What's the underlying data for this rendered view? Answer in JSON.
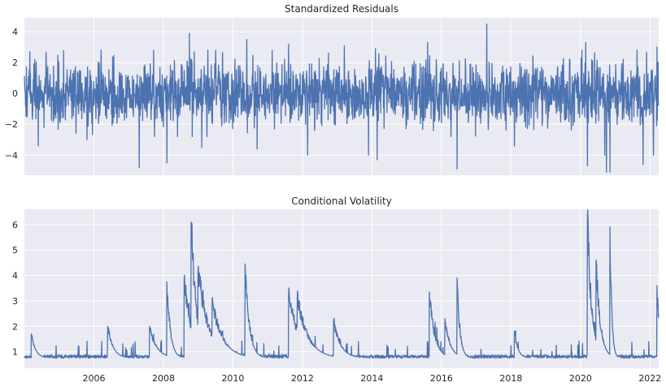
{
  "colors": {
    "background": "#eaeaf2",
    "grid": "#ffffff",
    "line": "#4c72b0",
    "text": "#262626"
  },
  "chart_data": [
    {
      "type": "line",
      "title": "Standardized Residuals",
      "xlabel": "",
      "ylabel": "",
      "xlim": [
        2004.0,
        2022.25
      ],
      "ylim": [
        -5.3,
        4.9
      ],
      "yticks": [
        -4,
        -2,
        0,
        2,
        4
      ],
      "ytick_labels": [
        "−4",
        "−2",
        "0",
        "2",
        "4"
      ],
      "grid": true,
      "series": [
        {
          "name": "std_resid",
          "frequency": "daily",
          "base_amplitude": 1.0,
          "spikes": [
            {
              "x": 2004.4,
              "y": -3.4
            },
            {
              "x": 2005.8,
              "y": -3.0
            },
            {
              "x": 2007.3,
              "y": -4.8
            },
            {
              "x": 2008.1,
              "y": -4.5
            },
            {
              "x": 2008.75,
              "y": 3.9
            },
            {
              "x": 2009.1,
              "y": -3.5
            },
            {
              "x": 2010.4,
              "y": 3.5
            },
            {
              "x": 2010.7,
              "y": -3.6
            },
            {
              "x": 2011.6,
              "y": 3.2
            },
            {
              "x": 2012.15,
              "y": -4.0
            },
            {
              "x": 2013.2,
              "y": 3.1
            },
            {
              "x": 2013.9,
              "y": -4.0
            },
            {
              "x": 2014.1,
              "y": 2.9
            },
            {
              "x": 2014.15,
              "y": -4.3
            },
            {
              "x": 2015.6,
              "y": 3.3
            },
            {
              "x": 2016.45,
              "y": -4.9
            },
            {
              "x": 2017.3,
              "y": 4.5
            },
            {
              "x": 2018.1,
              "y": -3.4
            },
            {
              "x": 2020.15,
              "y": 3.3
            },
            {
              "x": 2020.2,
              "y": -4.7
            },
            {
              "x": 2020.7,
              "y": -4.0
            },
            {
              "x": 2020.75,
              "y": -5.1
            },
            {
              "x": 2020.85,
              "y": -5.1
            },
            {
              "x": 2021.8,
              "y": -4.6
            },
            {
              "x": 2022.1,
              "y": -4.0
            },
            {
              "x": 2022.2,
              "y": 3.0
            }
          ]
        }
      ]
    },
    {
      "type": "line",
      "title": "Conditional Volatility",
      "xlabel": "",
      "ylabel": "",
      "xlim": [
        2004.0,
        2022.25
      ],
      "ylim": [
        0.35,
        6.6
      ],
      "yticks": [
        1,
        2,
        3,
        4,
        5,
        6
      ],
      "ytick_labels": [
        "1",
        "2",
        "3",
        "4",
        "5",
        "6"
      ],
      "xticks": [
        2006,
        2008,
        2010,
        2012,
        2014,
        2016,
        2018,
        2020,
        2022
      ],
      "xtick_labels": [
        "2006",
        "2008",
        "2010",
        "2012",
        "2014",
        "2016",
        "2018",
        "2020",
        "2022"
      ],
      "grid": true,
      "series": [
        {
          "name": "conditional_volatility",
          "frequency": "daily",
          "baseline": 0.75,
          "peaks": [
            {
              "x": 2004.2,
              "y": 1.7,
              "decay": 0.12
            },
            {
              "x": 2006.4,
              "y": 2.0,
              "decay": 0.15
            },
            {
              "x": 2007.6,
              "y": 2.0,
              "decay": 0.2
            },
            {
              "x": 2008.1,
              "y": 3.75,
              "decay": 0.1
            },
            {
              "x": 2008.6,
              "y": 3.9,
              "decay": 0.2
            },
            {
              "x": 2008.8,
              "y": 6.1,
              "decay": 0.15
            },
            {
              "x": 2009.0,
              "y": 4.2,
              "decay": 0.3
            },
            {
              "x": 2009.4,
              "y": 3.0,
              "decay": 0.3
            },
            {
              "x": 2010.35,
              "y": 4.45,
              "decay": 0.12
            },
            {
              "x": 2011.6,
              "y": 3.3,
              "decay": 0.3
            },
            {
              "x": 2011.85,
              "y": 3.2,
              "decay": 0.3
            },
            {
              "x": 2012.9,
              "y": 2.2,
              "decay": 0.2
            },
            {
              "x": 2015.65,
              "y": 3.35,
              "decay": 0.15
            },
            {
              "x": 2016.1,
              "y": 2.3,
              "decay": 0.15
            },
            {
              "x": 2016.45,
              "y": 3.9,
              "decay": 0.08
            },
            {
              "x": 2018.1,
              "y": 1.8,
              "decay": 0.1
            },
            {
              "x": 2020.2,
              "y": 6.3,
              "decay": 0.12
            },
            {
              "x": 2020.45,
              "y": 4.6,
              "decay": 0.12
            },
            {
              "x": 2020.85,
              "y": 5.9,
              "decay": 0.05
            },
            {
              "x": 2022.2,
              "y": 3.6,
              "decay": 0.1
            }
          ]
        }
      ]
    }
  ]
}
